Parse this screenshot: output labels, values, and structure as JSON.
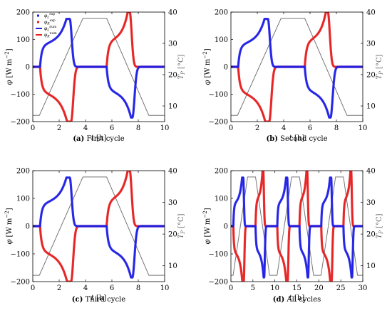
{
  "colors": {
    "blue": "#1f1fe6",
    "red": "#e61f1f",
    "temperature": "#777777"
  },
  "legend": [
    {
      "label": "φL exp",
      "sym": "φ",
      "sub": "L",
      "sup": "exp",
      "color": "#1f1fe6",
      "kind": "marker"
    },
    {
      "label": "φR exp",
      "sym": "φ",
      "sub": "R",
      "sup": "exp",
      "color": "#e61f1f",
      "kind": "marker"
    },
    {
      "label": "φL num",
      "sym": "φ",
      "sub": "L",
      "sup": "num",
      "color": "#1f1fe6",
      "kind": "line"
    },
    {
      "label": "φR num",
      "sym": "φ",
      "sub": "R",
      "sup": "num",
      "color": "#e61f1f",
      "kind": "line"
    }
  ],
  "chart_data": [
    {
      "type": "line",
      "id": "a",
      "caption_letter": "(a)",
      "caption_text": "First cycle",
      "xlabel": {
        "sym": "t",
        "unit": "[h]"
      },
      "ylabel": {
        "sym": "φ",
        "unit": "[W m",
        "exp": "−2",
        "close": "]"
      },
      "y2label": {
        "sym": "T",
        "sub": "P",
        "unit": "[°C]"
      },
      "xlim": [
        0,
        10
      ],
      "ylim": [
        -200,
        200
      ],
      "y2lim": [
        5,
        40
      ],
      "xticks": [
        0,
        2,
        4,
        6,
        8,
        10
      ],
      "yticks": [
        -200,
        -100,
        0,
        100,
        200
      ],
      "y2ticks": [
        10,
        20,
        30,
        40
      ],
      "cycles": 1,
      "show_legend": true,
      "series": [
        {
          "name": "φL exp",
          "role": "heat-flux-left"
        },
        {
          "name": "φR exp",
          "role": "heat-flux-right"
        },
        {
          "name": "φL num",
          "role": "heat-flux-left"
        },
        {
          "name": "φR num",
          "role": "heat-flux-right"
        },
        {
          "role": "temperature",
          "x": [
            0,
            0.5,
            3.8,
            5.6,
            8.8,
            10
          ],
          "y": [
            7,
            7,
            38,
            38,
            7,
            7
          ]
        }
      ]
    },
    {
      "type": "line",
      "id": "b",
      "caption_letter": "(b)",
      "caption_text": "Second cycle",
      "xlabel": {
        "sym": "t",
        "unit": "[h]"
      },
      "ylabel": {
        "sym": "φ",
        "unit": "[W m",
        "exp": "−2",
        "close": "]"
      },
      "y2label": {
        "sym": "T",
        "sub": "P",
        "unit": "[°C]"
      },
      "xlim": [
        0,
        10
      ],
      "ylim": [
        -200,
        200
      ],
      "y2lim": [
        5,
        40
      ],
      "xticks": [
        0,
        2,
        4,
        6,
        8,
        10
      ],
      "yticks": [
        -200,
        -100,
        0,
        100,
        200
      ],
      "y2ticks": [
        10,
        20,
        30,
        40
      ],
      "cycles": 1,
      "show_legend": false,
      "series": [
        {
          "role": "heat-flux-left"
        },
        {
          "role": "heat-flux-right"
        },
        {
          "role": "temperature",
          "x": [
            0,
            0.5,
            3.8,
            5.6,
            8.8,
            10
          ],
          "y": [
            7,
            7,
            38,
            38,
            7,
            7
          ]
        }
      ]
    },
    {
      "type": "line",
      "id": "c",
      "caption_letter": "(c)",
      "caption_text": "Third cycle",
      "xlabel": {
        "sym": "t",
        "unit": "[h]"
      },
      "ylabel": {
        "sym": "φ",
        "unit": "[W m",
        "exp": "−2",
        "close": "]"
      },
      "y2label": {
        "sym": "T",
        "sub": "P",
        "unit": "[°C]"
      },
      "xlim": [
        0,
        10
      ],
      "ylim": [
        -200,
        200
      ],
      "y2lim": [
        5,
        40
      ],
      "xticks": [
        0,
        2,
        4,
        6,
        8,
        10
      ],
      "yticks": [
        -200,
        -100,
        0,
        100,
        200
      ],
      "y2ticks": [
        10,
        20,
        30,
        40
      ],
      "cycles": 1,
      "show_legend": false,
      "series": [
        {
          "role": "heat-flux-left"
        },
        {
          "role": "heat-flux-right"
        },
        {
          "role": "temperature",
          "x": [
            0,
            0.5,
            3.8,
            5.6,
            8.8,
            10
          ],
          "y": [
            7,
            7,
            38,
            38,
            7,
            7
          ]
        }
      ]
    },
    {
      "type": "line",
      "id": "d",
      "caption_letter": "(d)",
      "caption_text": "All cycles",
      "xlabel": {
        "sym": "t",
        "unit": "[h]"
      },
      "ylabel": {
        "sym": "φ",
        "unit": "[W m",
        "exp": "−2",
        "close": "]"
      },
      "y2label": {
        "sym": "T",
        "sub": "P",
        "unit": "[°C]"
      },
      "xlim": [
        0,
        30
      ],
      "ylim": [
        -200,
        200
      ],
      "y2lim": [
        5,
        40
      ],
      "xticks": [
        0,
        5,
        10,
        15,
        20,
        25,
        30
      ],
      "yticks": [
        -200,
        -100,
        0,
        100,
        200
      ],
      "y2ticks": [
        10,
        20,
        30,
        40
      ],
      "cycles": 3,
      "show_legend": false,
      "series": [
        {
          "role": "heat-flux-left"
        },
        {
          "role": "heat-flux-right"
        },
        {
          "role": "temperature",
          "x": [
            0,
            0.5,
            3.8,
            5.6,
            8.8,
            10,
            10.5,
            13.8,
            15.6,
            18.8,
            20,
            20.5,
            23.8,
            25.6,
            28.8,
            30
          ],
          "y": [
            7,
            7,
            38,
            38,
            7,
            7,
            7,
            38,
            38,
            7,
            7,
            7,
            38,
            38,
            7,
            7
          ]
        }
      ]
    }
  ]
}
